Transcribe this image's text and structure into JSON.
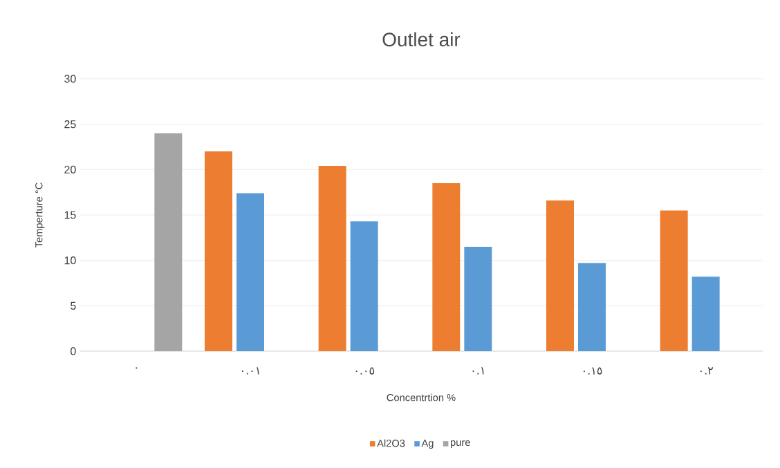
{
  "chart_data": {
    "type": "bar",
    "title": "Outlet air",
    "xlabel": "Concentrtion %",
    "ylabel": "Temperture °C",
    "categories": [
      "٠",
      "٠.٠١",
      "٠.٠٥",
      "٠.١",
      "٠.١٥",
      "٠.٢"
    ],
    "series": [
      {
        "name": "Al2O3",
        "color": "#ed7d31",
        "values": [
          null,
          22,
          20.4,
          18.5,
          16.6,
          15.5
        ]
      },
      {
        "name": "Ag",
        "color": "#5b9bd5",
        "values": [
          null,
          17.4,
          14.3,
          11.5,
          9.7,
          8.2
        ]
      },
      {
        "name": "pure",
        "color": "#a5a5a5",
        "values": [
          24,
          null,
          null,
          null,
          null,
          null
        ]
      }
    ],
    "ylim": [
      0,
      30
    ],
    "yticks": [
      0,
      5,
      10,
      15,
      20,
      25,
      30
    ],
    "grid": "y",
    "legend": "bottom"
  }
}
